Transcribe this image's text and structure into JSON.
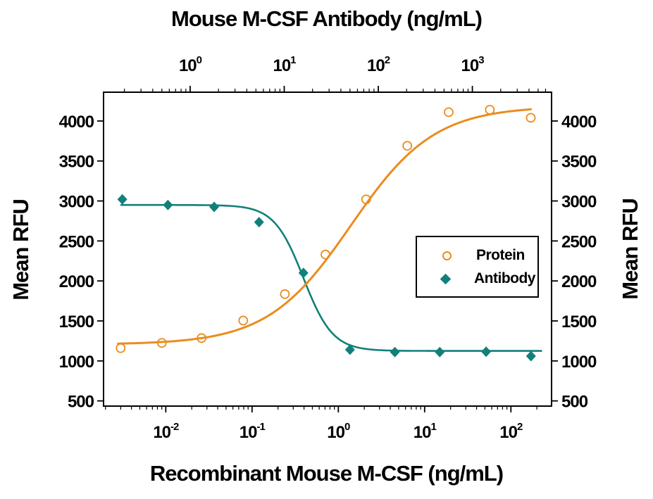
{
  "chart_data": {
    "type": "scatter",
    "title_top": "Mouse M-CSF Antibody (ng/mL)",
    "xlabel_bottom": "Recombinant Mouse M-CSF (ng/mL)",
    "ylabel_left": "Mean RFU",
    "ylabel_right": "Mean RFU",
    "grid": false,
    "axes": {
      "y": {
        "min": 435,
        "max": 4360,
        "ticks": [
          500,
          1000,
          1500,
          2000,
          2500,
          3000,
          3500,
          4000
        ]
      },
      "x_bottom": {
        "scale": "log",
        "min": 0.0019,
        "max": 296,
        "major_decades": [
          -2,
          -1,
          0,
          1,
          2
        ]
      },
      "x_top": {
        "scale": "log",
        "min": 0.12,
        "max": 6950,
        "major_decades": [
          0,
          1,
          2,
          3
        ]
      }
    },
    "series": [
      {
        "name": "Antibody",
        "x_axis": "top",
        "marker": "filled-diamond",
        "color": "#12807A",
        "x": [
          0.19,
          0.58,
          1.8,
          5.4,
          16,
          50,
          150,
          450,
          1400,
          4200
        ],
        "y": [
          3020,
          2950,
          2925,
          2735,
          2100,
          1140,
          1110,
          1110,
          1115,
          1060
        ],
        "fit": {
          "type": "4PL",
          "bottom": 1125,
          "top": 2950,
          "mid": 16,
          "hill": -2.8,
          "x_range": [
            0.185,
            5400
          ]
        }
      },
      {
        "name": "Protein",
        "x_axis": "bottom",
        "marker": "open-circle",
        "color": "#EA8C1E",
        "x": [
          0.003,
          0.009,
          0.026,
          0.079,
          0.24,
          0.71,
          2.1,
          6.3,
          19,
          57,
          170
        ],
        "y": [
          1160,
          1225,
          1285,
          1505,
          1835,
          2330,
          3020,
          3690,
          4110,
          4140,
          4040
        ],
        "fit": {
          "type": "4PL",
          "bottom": 1205,
          "top": 4185,
          "mid": 1.4,
          "hill": 0.9,
          "x_range": [
            0.0028,
            170
          ]
        }
      }
    ],
    "legend": {
      "position": "middle-right",
      "items": [
        {
          "label": "Protein"
        },
        {
          "label": "Antibody"
        }
      ]
    },
    "colors": {
      "axis": "#000000",
      "background": "#FFFFFF"
    }
  }
}
